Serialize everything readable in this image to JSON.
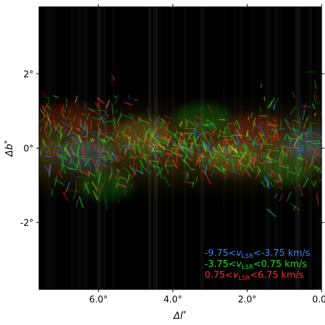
{
  "axes": {
    "xlabel_main": "Δl",
    "xlabel_sup": "*",
    "ylabel_main": "Δb",
    "ylabel_sup": "*",
    "xlim": [
      7.6,
      0.0
    ],
    "ylim": [
      -3.8,
      3.8
    ],
    "x_ticks": [
      {
        "value": 6.0,
        "label": "6.0°"
      },
      {
        "value": 4.0,
        "label": "4.0°"
      },
      {
        "value": 2.0,
        "label": "2.0°"
      },
      {
        "value": 0.0,
        "label": "0.0°"
      }
    ],
    "y_ticks": [
      {
        "value": 2,
        "label": "2°"
      },
      {
        "value": 0,
        "label": "0°"
      },
      {
        "value": -2,
        "label": "-2°"
      }
    ]
  },
  "legend": [
    {
      "pre": "-9.75<",
      "v": "v",
      "sub": "LSR",
      "post": "<-3.75 km/s",
      "color": "#2e86ff"
    },
    {
      "pre": "-3.75<",
      "v": "v",
      "sub": "LSR",
      "post": "<0.75 km/s",
      "color": "#1fdc1f"
    },
    {
      "pre": "0.75<",
      "v": "v",
      "sub": "LSR",
      "post": "<6.75 km/s",
      "color": "#ff2a1a"
    }
  ],
  "colors": {
    "background": "#000000",
    "blue": "#2e86ff",
    "green": "#1fdc1f",
    "red": "#ff2a1a",
    "yellow": "#e8c040"
  }
}
